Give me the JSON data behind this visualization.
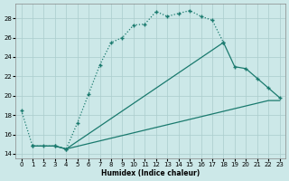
{
  "xlabel": "Humidex (Indice chaleur)",
  "bg_color": "#cce8e8",
  "grid_color": "#aacccc",
  "line_color": "#1a7a6e",
  "ylim": [
    13.5,
    29.5
  ],
  "xlim": [
    -0.5,
    23.5
  ],
  "yticks": [
    14,
    16,
    18,
    20,
    22,
    24,
    26,
    28
  ],
  "xticks": [
    0,
    1,
    2,
    3,
    4,
    5,
    6,
    7,
    8,
    9,
    10,
    11,
    12,
    13,
    14,
    15,
    16,
    17,
    18,
    19,
    20,
    21,
    22,
    23
  ],
  "curve_x": [
    0,
    1,
    2,
    3,
    4,
    5,
    6,
    7,
    8,
    9,
    10,
    11,
    12,
    13,
    14,
    15,
    16,
    17,
    18
  ],
  "curve_y": [
    18.5,
    14.8,
    14.8,
    14.8,
    14.5,
    17.2,
    20.2,
    23.2,
    25.5,
    26.0,
    27.3,
    27.4,
    28.7,
    28.2,
    28.5,
    28.8,
    28.2,
    27.8,
    25.5
  ],
  "fan_top_x": [
    1,
    3,
    4,
    18,
    19,
    20,
    21,
    22,
    23
  ],
  "fan_top_y": [
    14.8,
    14.8,
    14.5,
    25.5,
    23.0,
    22.8,
    21.8,
    20.8,
    19.8
  ],
  "fan_bottom_x": [
    1,
    3,
    4,
    22,
    23
  ],
  "fan_bottom_y": [
    14.8,
    14.8,
    14.5,
    19.5,
    19.5
  ]
}
